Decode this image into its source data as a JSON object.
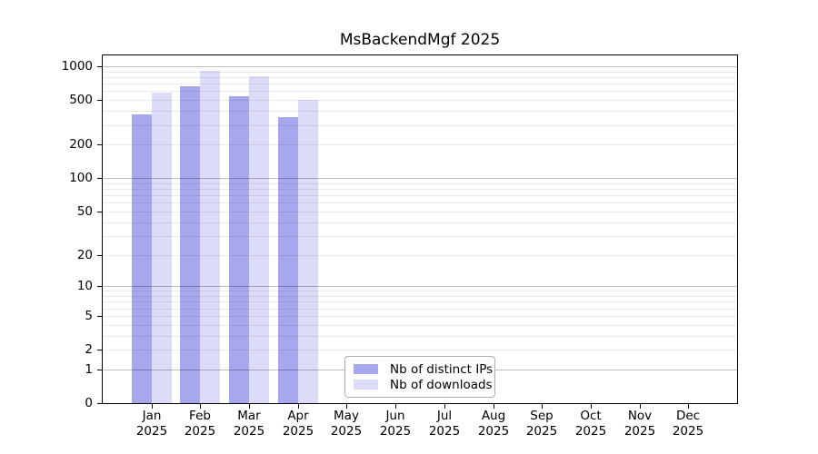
{
  "chart_data": {
    "type": "bar",
    "title": "MsBackendMgf 2025",
    "year_label": "2025",
    "categories": [
      "Jan",
      "Feb",
      "Mar",
      "Apr",
      "May",
      "Jun",
      "Jul",
      "Aug",
      "Sep",
      "Oct",
      "Nov",
      "Dec"
    ],
    "series": [
      {
        "name": "Nb of distinct IPs",
        "color": "#a7a7ee",
        "values": [
          373,
          665,
          541,
          352,
          null,
          null,
          null,
          null,
          null,
          null,
          null,
          null
        ]
      },
      {
        "name": "Nb of downloads",
        "color": "#dcdcf8",
        "values": [
          583,
          911,
          816,
          502,
          null,
          null,
          null,
          null,
          null,
          null,
          null,
          null
        ]
      }
    ],
    "yscale": "log1p",
    "ylim": [
      0,
      1250
    ],
    "y_ticks": [
      0,
      1,
      2,
      5,
      10,
      20,
      50,
      100,
      200,
      500,
      1000
    ],
    "xlabel": "",
    "ylabel": "",
    "grid": "horizontal, minor log lines light / powers of 10 darker",
    "legend_position": "lower center"
  }
}
